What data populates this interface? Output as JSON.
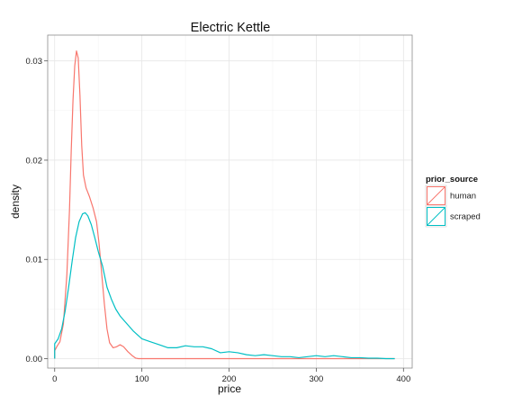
{
  "chart_data": {
    "type": "line",
    "title": "Electric Kettle",
    "xlabel": "price",
    "ylabel": "density",
    "xlim": [
      -8,
      410
    ],
    "ylim": [
      -0.00095,
      0.0326
    ],
    "x_ticks": [
      0,
      100,
      200,
      300,
      400
    ],
    "y_ticks": [
      0.0,
      0.01,
      0.02,
      0.03
    ],
    "x_tick_labels": [
      "0",
      "100",
      "200",
      "300",
      "400"
    ],
    "y_tick_labels": [
      "0.00",
      "0.01",
      "0.02",
      "0.03"
    ],
    "grid": true,
    "legend": {
      "title": "prior_source",
      "position": "right"
    },
    "series": [
      {
        "name": "human",
        "color": "#F8766D",
        "points": [
          [
            0,
            0.0
          ],
          [
            0,
            0.0008
          ],
          [
            3,
            0.0013
          ],
          [
            6,
            0.0017
          ],
          [
            10,
            0.0035
          ],
          [
            14,
            0.0085
          ],
          [
            17,
            0.015
          ],
          [
            19,
            0.021
          ],
          [
            21,
            0.026
          ],
          [
            23,
            0.0295
          ],
          [
            25,
            0.031
          ],
          [
            27,
            0.0303
          ],
          [
            29,
            0.0265
          ],
          [
            31,
            0.0215
          ],
          [
            33,
            0.0185
          ],
          [
            36,
            0.0172
          ],
          [
            40,
            0.0163
          ],
          [
            44,
            0.0152
          ],
          [
            48,
            0.0138
          ],
          [
            51,
            0.0115
          ],
          [
            54,
            0.0085
          ],
          [
            57,
            0.0055
          ],
          [
            60,
            0.003
          ],
          [
            63,
            0.0016
          ],
          [
            67,
            0.0011
          ],
          [
            71,
            0.0012
          ],
          [
            75,
            0.0014
          ],
          [
            79,
            0.0012
          ],
          [
            84,
            0.0007
          ],
          [
            89,
            0.0003
          ],
          [
            93,
            5e-05
          ],
          [
            96,
            0.0
          ],
          [
            390,
            0.0
          ]
        ]
      },
      {
        "name": "scraped",
        "color": "#00BFC4",
        "points": [
          [
            0,
            0.0
          ],
          [
            0,
            0.0015
          ],
          [
            4,
            0.002
          ],
          [
            8,
            0.003
          ],
          [
            12,
            0.0048
          ],
          [
            16,
            0.0072
          ],
          [
            20,
            0.0098
          ],
          [
            24,
            0.0122
          ],
          [
            28,
            0.0138
          ],
          [
            32,
            0.0146
          ],
          [
            35,
            0.0147
          ],
          [
            38,
            0.0144
          ],
          [
            42,
            0.0135
          ],
          [
            46,
            0.0122
          ],
          [
            50,
            0.0108
          ],
          [
            55,
            0.0093
          ],
          [
            60,
            0.0072
          ],
          [
            65,
            0.006
          ],
          [
            70,
            0.005
          ],
          [
            75,
            0.0043
          ],
          [
            80,
            0.0038
          ],
          [
            85,
            0.0033
          ],
          [
            90,
            0.0028
          ],
          [
            95,
            0.0024
          ],
          [
            100,
            0.002
          ],
          [
            110,
            0.0017
          ],
          [
            120,
            0.0014
          ],
          [
            130,
            0.0011
          ],
          [
            140,
            0.0011
          ],
          [
            150,
            0.0013
          ],
          [
            160,
            0.0012
          ],
          [
            170,
            0.0012
          ],
          [
            180,
            0.001
          ],
          [
            190,
            0.0006
          ],
          [
            200,
            0.0007
          ],
          [
            210,
            0.0006
          ],
          [
            220,
            0.0004
          ],
          [
            230,
            0.0003
          ],
          [
            240,
            0.0004
          ],
          [
            250,
            0.0003
          ],
          [
            260,
            0.0002
          ],
          [
            270,
            0.0002
          ],
          [
            280,
            0.0001
          ],
          [
            290,
            0.0002
          ],
          [
            300,
            0.0003
          ],
          [
            310,
            0.0002
          ],
          [
            320,
            0.0003
          ],
          [
            330,
            0.0002
          ],
          [
            340,
            0.0001
          ],
          [
            350,
            0.0001
          ],
          [
            360,
            5e-05
          ],
          [
            370,
            5e-05
          ],
          [
            380,
            0.0
          ],
          [
            390,
            0.0
          ]
        ]
      }
    ]
  }
}
